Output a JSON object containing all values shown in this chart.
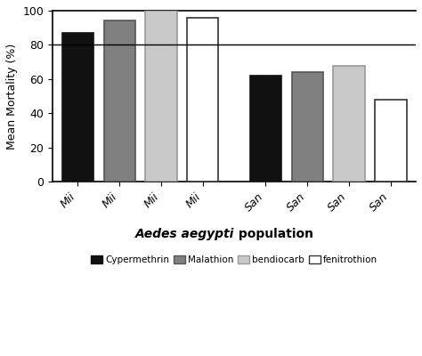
{
  "categories": [
    "Mii",
    "Mii",
    "Mii",
    "Mii",
    "San",
    "San",
    "San",
    "San"
  ],
  "values": [
    87,
    94,
    100,
    96,
    62,
    64,
    68,
    48
  ],
  "colors": [
    "#111111",
    "#808080",
    "#c8c8c8",
    "#ffffff",
    "#111111",
    "#808080",
    "#c8c8c8",
    "#ffffff"
  ],
  "edgecolors": [
    "#111111",
    "#555555",
    "#999999",
    "#333333",
    "#111111",
    "#555555",
    "#999999",
    "#333333"
  ],
  "ylabel": "Mean Mortality (%)",
  "xlabel_italic": "Aedes aegypti",
  "xlabel_normal": " population",
  "ylim": [
    0,
    100
  ],
  "yticks": [
    0,
    20,
    40,
    60,
    80,
    100
  ],
  "hline_y": 80,
  "legend_labels": [
    "Cypermethrin",
    "Malathion",
    "bendiocarb",
    "fenitrothion"
  ],
  "legend_colors": [
    "#111111",
    "#808080",
    "#c8c8c8",
    "#ffffff"
  ],
  "legend_edgecolors": [
    "#111111",
    "#555555",
    "#999999",
    "#333333"
  ],
  "x_positions": [
    0,
    1,
    2,
    3,
    4.5,
    5.5,
    6.5,
    7.5
  ],
  "bar_width": 0.75,
  "background_color": "#ffffff"
}
